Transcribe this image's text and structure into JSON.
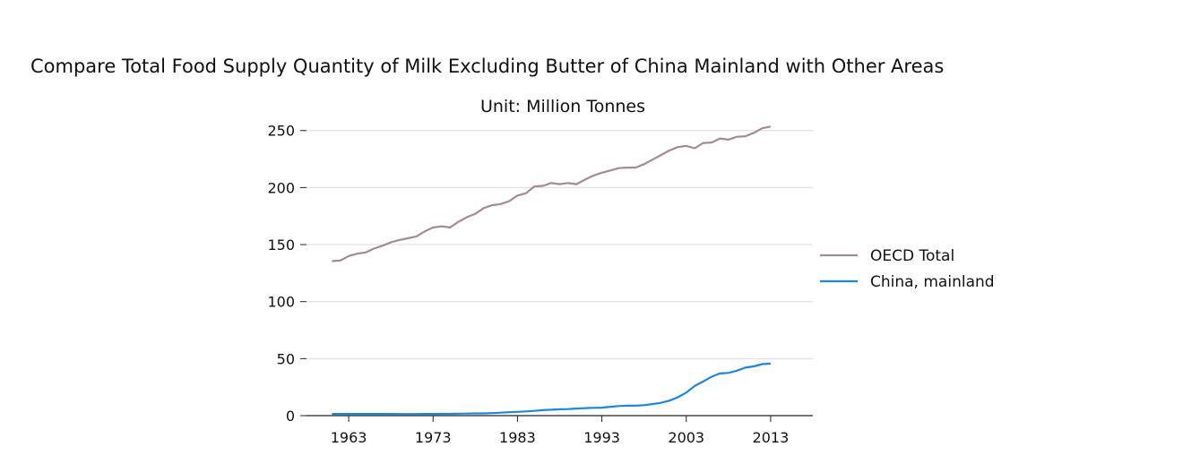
{
  "chart_data": {
    "type": "line",
    "title": "Compare Total Food Supply Quantity of Milk Excluding Butter of China Mainland with Other Areas",
    "subtitle": "Unit: Million Tonnes",
    "xlabel": "",
    "ylabel": "",
    "xlim": [
      1958,
      2018
    ],
    "ylim": [
      0,
      260
    ],
    "x_ticks": [
      1963,
      1973,
      1983,
      1993,
      2003,
      2013
    ],
    "y_ticks": [
      0,
      50,
      100,
      150,
      200,
      250
    ],
    "grid": "horizontal",
    "legend_position": "right",
    "x": [
      1961,
      1962,
      1963,
      1964,
      1965,
      1966,
      1967,
      1968,
      1969,
      1970,
      1971,
      1972,
      1973,
      1974,
      1975,
      1976,
      1977,
      1978,
      1979,
      1980,
      1981,
      1982,
      1983,
      1984,
      1985,
      1986,
      1987,
      1988,
      1989,
      1990,
      1991,
      1992,
      1993,
      1994,
      1995,
      1996,
      1997,
      1998,
      1999,
      2000,
      2001,
      2002,
      2003,
      2004,
      2005,
      2006,
      2007,
      2008,
      2009,
      2010,
      2011,
      2012,
      2013
    ],
    "series": [
      {
        "name": "OECD Total",
        "color": "#a48a91",
        "values": [
          135.5,
          136,
          140,
          142,
          143,
          146.5,
          149,
          152,
          154,
          155.5,
          157,
          161.5,
          165,
          166,
          165,
          170,
          174,
          177,
          182,
          184.5,
          185.5,
          188,
          193,
          195,
          201,
          201.5,
          204,
          203,
          204,
          203,
          207,
          210.5,
          213,
          215,
          217,
          217.5,
          217.5,
          220.5,
          224.5,
          228.5,
          232.5,
          235.5,
          236.5,
          234.5,
          239,
          239.5,
          243,
          242,
          244.5,
          245,
          248,
          252,
          253.5
        ]
      },
      {
        "name": "China, mainland",
        "color": "#1f86d8",
        "values": [
          1.5,
          1.5,
          1.5,
          1.5,
          1.5,
          1.5,
          1.5,
          1.5,
          1.4,
          1.4,
          1.4,
          1.5,
          1.5,
          1.6,
          1.6,
          1.7,
          1.8,
          2,
          2,
          2.2,
          2.6,
          3,
          3.3,
          3.7,
          4.2,
          4.8,
          5.2,
          5.6,
          5.7,
          6.2,
          6.6,
          6.8,
          7,
          7.8,
          8.4,
          8.8,
          8.7,
          9.2,
          10.1,
          11.2,
          13.1,
          16.1,
          20.2,
          26,
          29.9,
          34.1,
          37,
          37.5,
          39.4,
          42.1,
          43.2,
          45.2,
          45.6
        ]
      }
    ]
  }
}
